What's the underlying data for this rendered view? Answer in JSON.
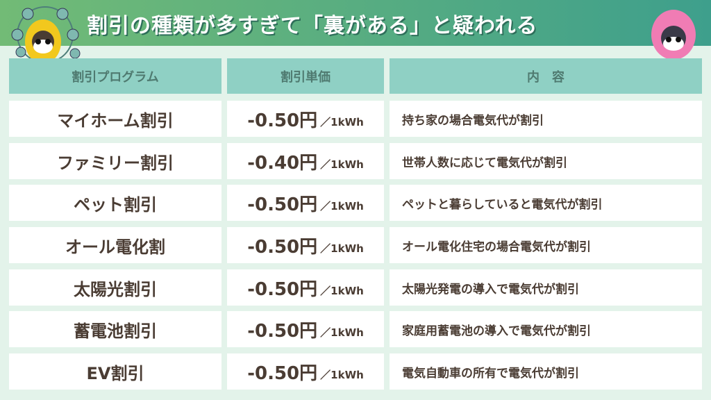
{
  "title": "割引の種類が多すぎて「裏がある」と疑われる",
  "headers": [
    "割引プログラム",
    "割引単価",
    "内　容"
  ],
  "unit": "／1kWh",
  "rows": [
    {
      "program": "マイホーム割引",
      "price": "-0.50円",
      "content": "持ち家の場合電気代が割引"
    },
    {
      "program": "ファミリー割引",
      "price": "-0.40円",
      "content": "世帯人数に応じて電気代が割引"
    },
    {
      "program": "ペット割引",
      "price": "-0.50円",
      "content": "ペットと暮らしていると電気代が割引"
    },
    {
      "program": "オール電化割",
      "price": "-0.50円",
      "content": "オール電化住宅の場合電気代が割引"
    },
    {
      "program": "太陽光割引",
      "price": "-0.50円",
      "content": "太陽光発電の導入で電気代が割引"
    },
    {
      "program": "蓄電池割引",
      "price": "-0.50円",
      "content": "家庭用蓄電池の導入で電気代が割引"
    },
    {
      "program": "EV割引",
      "price": "-0.50円",
      "content": "電気自動車の所有で電気代が割引"
    }
  ]
}
